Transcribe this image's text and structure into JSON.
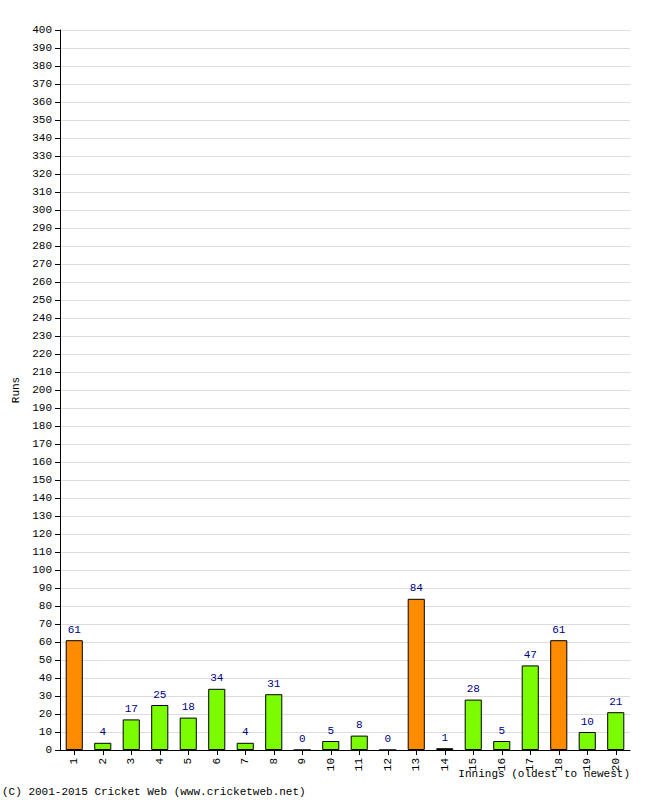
{
  "chart_data": {
    "type": "bar",
    "categories": [
      "1",
      "2",
      "3",
      "4",
      "5",
      "6",
      "7",
      "8",
      "9",
      "10",
      "11",
      "12",
      "13",
      "14",
      "15",
      "16",
      "17",
      "18",
      "19",
      "20"
    ],
    "values": [
      61,
      4,
      17,
      25,
      18,
      34,
      4,
      31,
      0,
      5,
      8,
      0,
      84,
      1,
      28,
      5,
      47,
      61,
      10,
      21
    ],
    "colors": [
      "#ff8c00",
      "#7cfc00",
      "#7cfc00",
      "#7cfc00",
      "#7cfc00",
      "#7cfc00",
      "#7cfc00",
      "#7cfc00",
      "#7cfc00",
      "#7cfc00",
      "#7cfc00",
      "#7cfc00",
      "#ff8c00",
      "#7cfc00",
      "#7cfc00",
      "#7cfc00",
      "#7cfc00",
      "#ff8c00",
      "#7cfc00",
      "#7cfc00"
    ],
    "y_label": "Runs",
    "x_label": "Innings (oldest to newest)",
    "annotation": "(C) 2001-2015 Cricket Web (www.cricketweb.net)",
    "ylim": [
      0,
      400
    ],
    "yticks": [
      0,
      10,
      20,
      30,
      40,
      50,
      60,
      70,
      80,
      90,
      100,
      110,
      120,
      130,
      140,
      150,
      160,
      170,
      180,
      190,
      200,
      210,
      220,
      230,
      240,
      250,
      260,
      270,
      280,
      290,
      300,
      310,
      320,
      330,
      340,
      350,
      360,
      370,
      380,
      390,
      400
    ],
    "grid": true,
    "data_labels": true
  }
}
